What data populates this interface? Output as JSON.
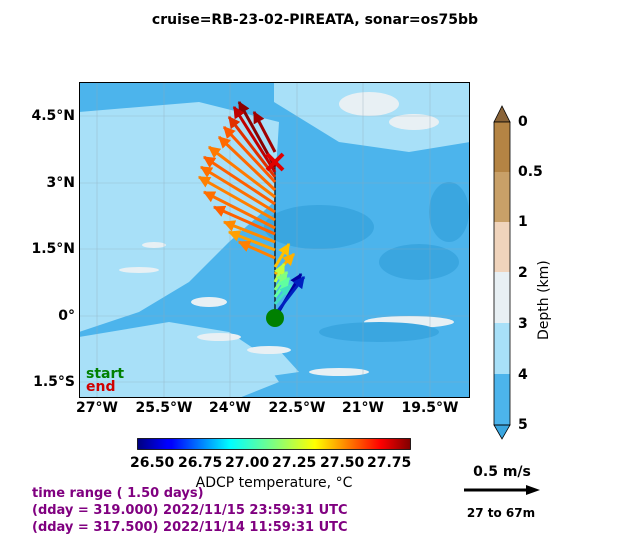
{
  "title": "cruise=RB-23-02-PIREATA,   sonar=os75bb",
  "map": {
    "lat_ticks": [
      "4.5°N",
      "3°N",
      "1.5°N",
      "0°",
      "1.5°S"
    ],
    "lon_ticks": [
      "27°W",
      "25.5°W",
      "24°W",
      "22.5°W",
      "21°W",
      "19.5°W"
    ],
    "legend": {
      "start": "start",
      "end": "end"
    },
    "colors": {
      "ocean_deep": "#4cb4ec",
      "ocean_mid": "#a8e0f8",
      "shelf": "#e8f0f4",
      "start_marker": "#008000",
      "end_marker": "#e00000"
    }
  },
  "depth_colorbar": {
    "label": "Depth (km)",
    "ticks": [
      "0",
      "0.5",
      "1",
      "2",
      "3",
      "4",
      "5"
    ],
    "colors": [
      "#b48444",
      "#c8a068",
      "#f0d4bc",
      "#e8f0f4",
      "#a8e0f8",
      "#4cb4ec"
    ]
  },
  "temp_colorbar": {
    "label": "ADCP temperature, °C",
    "ticks": [
      "26.50",
      "26.75",
      "27.00",
      "27.25",
      "27.50",
      "27.75"
    ],
    "colormap": "jet"
  },
  "scale_arrow": {
    "speed": "0.5 m/s",
    "depth_range": "27 to 67m"
  },
  "time_info": {
    "line1": "time range ( 1.50 days)",
    "line2": "(dday = 319.000) 2022/11/15 23:59:31 UTC",
    "line3": "(dday = 317.500) 2022/11/14 11:59:31 UTC"
  }
}
